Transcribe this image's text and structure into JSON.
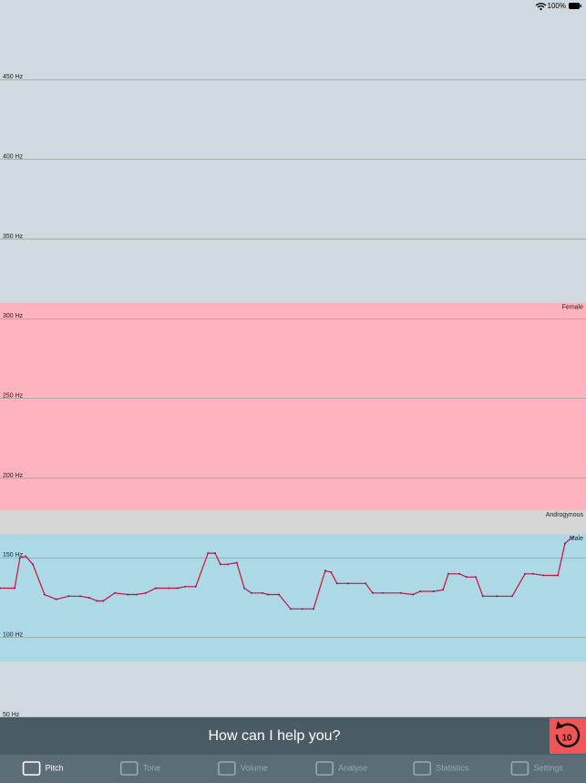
{
  "status_bar": {
    "battery": "100%"
  },
  "chart_data": {
    "type": "line",
    "ylim": [
      50,
      500
    ],
    "yticks": [
      {
        "value": 50,
        "label": "50 Hz"
      },
      {
        "value": 100,
        "label": "100 Hz"
      },
      {
        "value": 150,
        "label": "150 Hz"
      },
      {
        "value": 200,
        "label": "200 Hz"
      },
      {
        "value": 250,
        "label": "250 Hz"
      },
      {
        "value": 300,
        "label": "300 Hz"
      },
      {
        "value": 350,
        "label": "350 Hz"
      },
      {
        "value": 400,
        "label": "400 Hz"
      },
      {
        "value": 450,
        "label": "450 Hz"
      }
    ],
    "grid": true,
    "bands": [
      {
        "name": "Female",
        "color": "#ffb3be",
        "range": [
          180,
          310
        ]
      },
      {
        "name": "Androgynous",
        "color": "#d6d6d6",
        "range": [
          165,
          180
        ]
      },
      {
        "name": "Male",
        "color": "#add8e6",
        "range": [
          85,
          165
        ]
      }
    ],
    "xlim": [
      0,
      100
    ],
    "x": [
      0,
      2.5,
      3.4,
      4.4,
      5.6,
      7.6,
      9.6,
      11.7,
      13.7,
      15.2,
      16.6,
      17.6,
      19.6,
      21.8,
      23.3,
      24.9,
      26.6,
      28.8,
      30.3,
      31.6,
      33.4,
      35.5,
      36.7,
      37.6,
      38.9,
      40.4,
      41.7,
      42.9,
      44.8,
      45.7,
      47.6,
      49.6,
      51.6,
      53.5,
      55.5,
      56.5,
      57.5,
      59.4,
      62.4,
      63.6,
      65.3,
      68.4,
      70.5,
      71.7,
      74.0,
      75.6,
      76.5,
      78.4,
      79.6,
      81.2,
      82.4,
      84.8,
      87.4,
      89.6,
      91.0,
      92.8,
      95.2,
      96.4,
      97.7
    ],
    "values": [
      131,
      131,
      150,
      151,
      146,
      127,
      124,
      126,
      126,
      125,
      123,
      123,
      128,
      127,
      127,
      128,
      131,
      131,
      131,
      132,
      132,
      153,
      153,
      146,
      146,
      147,
      131,
      128,
      128,
      127,
      127,
      118,
      118,
      118,
      142,
      141,
      134,
      134,
      134,
      128,
      128,
      128,
      127,
      129,
      129,
      130,
      140,
      140,
      138,
      138,
      126,
      126,
      126,
      140,
      140,
      139,
      139,
      159,
      163
    ],
    "color": "#cc1133"
  },
  "banner": "How can I help you?",
  "replay_button": "10",
  "tabs": [
    "Pitch",
    "Tone",
    "Volume",
    "Analyse",
    "Statistics",
    "Settings"
  ],
  "active_tab": 0
}
